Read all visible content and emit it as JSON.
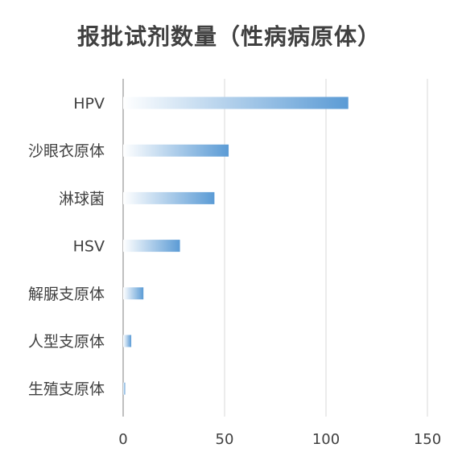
{
  "colors": {
    "bar_start": "#ffffff",
    "bar_end": "#5b9bd5",
    "grid": "#d9d9d9",
    "axis": "#bfbfbf",
    "text": "#404040"
  },
  "chart_data": {
    "type": "bar",
    "orientation": "horizontal",
    "title": "报批试剂数量（性病病原体）",
    "xlabel": "",
    "ylabel": "",
    "categories": [
      "HPV",
      "沙眼衣原体",
      "淋球菌",
      "HSV",
      "解脲支原体",
      "人型支原体",
      "生殖支原体"
    ],
    "values": [
      111,
      52,
      45,
      28,
      10,
      4,
      1
    ],
    "xlim": [
      0,
      150
    ],
    "xticks": [
      0,
      50,
      100,
      150
    ],
    "grid": true,
    "legend": "none"
  }
}
